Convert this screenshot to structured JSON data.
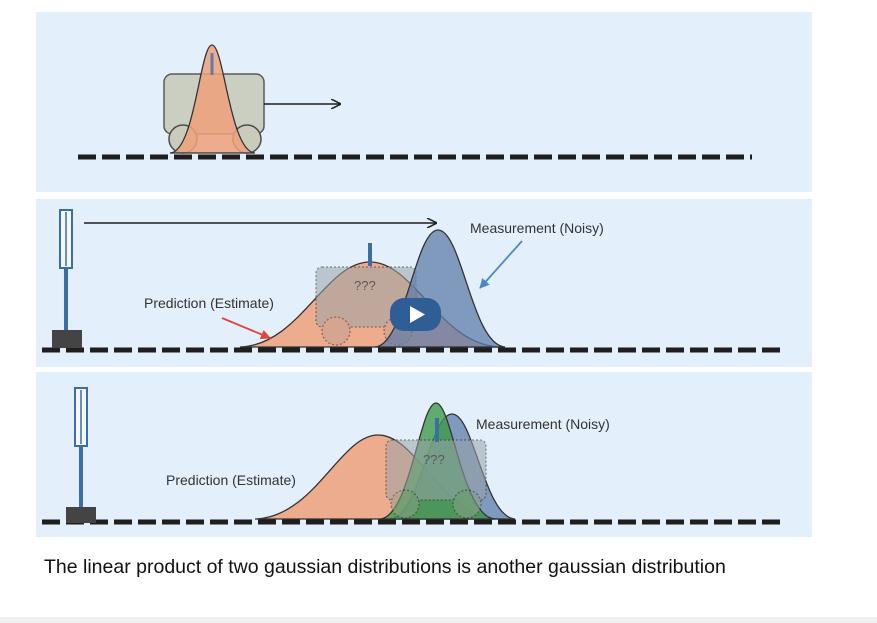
{
  "panels": [
    {
      "id": "initial-state"
    },
    {
      "id": "prediction-and-measurement",
      "prediction_label": "Prediction (Estimate)",
      "measurement_label": "Measurement (Noisy)",
      "unknown_label": "???"
    },
    {
      "id": "combined-estimate",
      "prediction_label": "Prediction (Estimate)",
      "measurement_label": "Measurement (Noisy)",
      "unknown_label": "???"
    }
  ],
  "caption": "The linear product of two gaussian distributions is another gaussian distribution",
  "colors": {
    "panel_background": "#e3effb",
    "prediction_fill": "#f0a07a",
    "measurement_fill": "#5f7ea8",
    "product_fill": "#3f9a4a",
    "track": "#1e1e1e",
    "arrow_red": "#e0443a",
    "arrow_blue": "#4f86c6",
    "play_button": "#2f5d95"
  },
  "icons": [
    "play-icon",
    "signal-tower-icon",
    "car-icon",
    "arrow-icon"
  ]
}
